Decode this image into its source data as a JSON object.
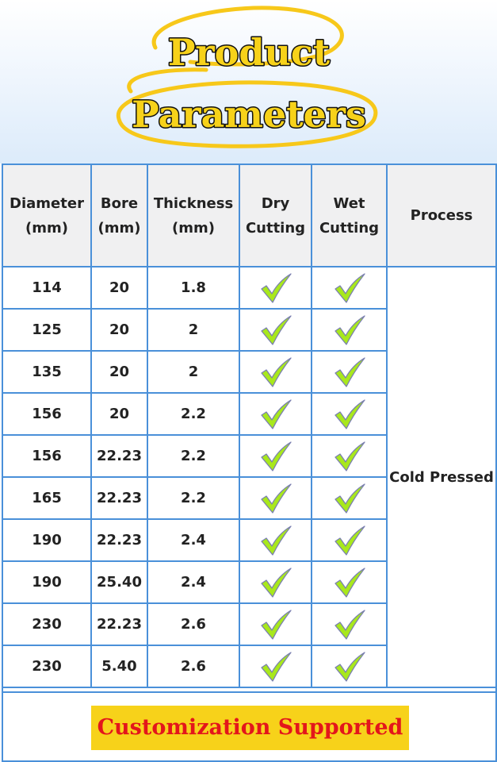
{
  "title": {
    "line1": "Product",
    "line2": "Parameters"
  },
  "table": {
    "headers": [
      {
        "line1": "Diameter",
        "line2": "(mm)"
      },
      {
        "line1": "Bore",
        "line2": "(mm)"
      },
      {
        "line1": "Thickness",
        "line2": "(mm)"
      },
      {
        "line1": "Dry",
        "line2": "Cutting"
      },
      {
        "line1": "Wet",
        "line2": "Cutting"
      },
      {
        "line1": "Process",
        "line2": ""
      }
    ],
    "rows": [
      {
        "diameter": "114",
        "bore": "20",
        "thickness": "1.8",
        "dry": true,
        "wet": true
      },
      {
        "diameter": "125",
        "bore": "20",
        "thickness": "2",
        "dry": true,
        "wet": true
      },
      {
        "diameter": "135",
        "bore": "20",
        "thickness": "2",
        "dry": true,
        "wet": true
      },
      {
        "diameter": "156",
        "bore": "20",
        "thickness": "2.2",
        "dry": true,
        "wet": true
      },
      {
        "diameter": "156",
        "bore": "22.23",
        "thickness": "2.2",
        "dry": true,
        "wet": true
      },
      {
        "diameter": "165",
        "bore": "22.23",
        "thickness": "2.2",
        "dry": true,
        "wet": true
      },
      {
        "diameter": "190",
        "bore": "22.23",
        "thickness": "2.4",
        "dry": true,
        "wet": true
      },
      {
        "diameter": "190",
        "bore": "25.40",
        "thickness": "2.4",
        "dry": true,
        "wet": true
      },
      {
        "diameter": "230",
        "bore": "22.23",
        "thickness": "2.6",
        "dry": true,
        "wet": true
      },
      {
        "diameter": "230",
        "bore": "5.40",
        "thickness": "2.6",
        "dry": true,
        "wet": true
      }
    ],
    "process": "Cold Pressed"
  },
  "footer": {
    "label": "Customization Supported"
  },
  "colors": {
    "accent_yellow": "#f7d21a",
    "border_blue": "#4a90d9",
    "check_green": "#a8e81c",
    "footer_red": "#e3161b"
  },
  "icons": {
    "check": "checkmark-icon"
  }
}
